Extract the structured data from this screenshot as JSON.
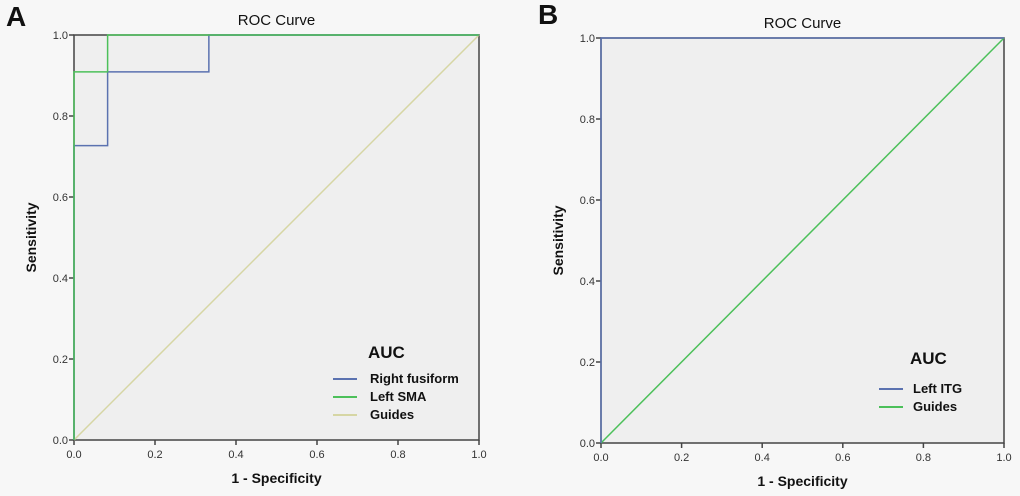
{
  "chart_data": [
    {
      "type": "line",
      "panel_label": "A",
      "title": "ROC Curve",
      "xlabel": "1 - Specificity",
      "ylabel": "Sensitivity",
      "xlim": [
        0,
        1
      ],
      "ylim": [
        0,
        1
      ],
      "xticks": [
        "0.0",
        "0.2",
        "0.4",
        "0.6",
        "0.8",
        "1.0"
      ],
      "yticks": [
        "0.0",
        "0.2",
        "0.4",
        "0.6",
        "0.8",
        "1.0"
      ],
      "legend_title": "AUC",
      "legend_position": "bottom-right",
      "series": [
        {
          "name": "Right fusiform",
          "color": "#5b72b0",
          "x": [
            0,
            0,
            0.083,
            0.083,
            0.333,
            0.333,
            1
          ],
          "y": [
            0,
            0.727,
            0.727,
            0.909,
            0.909,
            1,
            1
          ]
        },
        {
          "name": "Left SMA",
          "color": "#4cc05a",
          "x": [
            0,
            0,
            0.083,
            0.083,
            1
          ],
          "y": [
            0,
            0.909,
            0.909,
            1,
            1
          ]
        },
        {
          "name": "Guides",
          "color": "#d6d6a4",
          "x": [
            0,
            1
          ],
          "y": [
            0,
            1
          ]
        }
      ]
    },
    {
      "type": "line",
      "panel_label": "B",
      "title": "ROC Curve",
      "xlabel": "1 - Specificity",
      "ylabel": "Sensitivity",
      "xlim": [
        0,
        1
      ],
      "ylim": [
        0,
        1
      ],
      "xticks": [
        "0.0",
        "0.2",
        "0.4",
        "0.6",
        "0.8",
        "1.0"
      ],
      "yticks": [
        "0.0",
        "0.2",
        "0.4",
        "0.6",
        "0.8",
        "1.0"
      ],
      "legend_title": "AUC",
      "legend_position": "bottom-right",
      "series": [
        {
          "name": "Left ITG",
          "color": "#5b72b0",
          "x": [
            0,
            0,
            1
          ],
          "y": [
            0,
            1,
            1
          ]
        },
        {
          "name": "Guides",
          "color": "#4cc05a",
          "x": [
            0,
            1
          ],
          "y": [
            0,
            1
          ]
        }
      ]
    }
  ]
}
